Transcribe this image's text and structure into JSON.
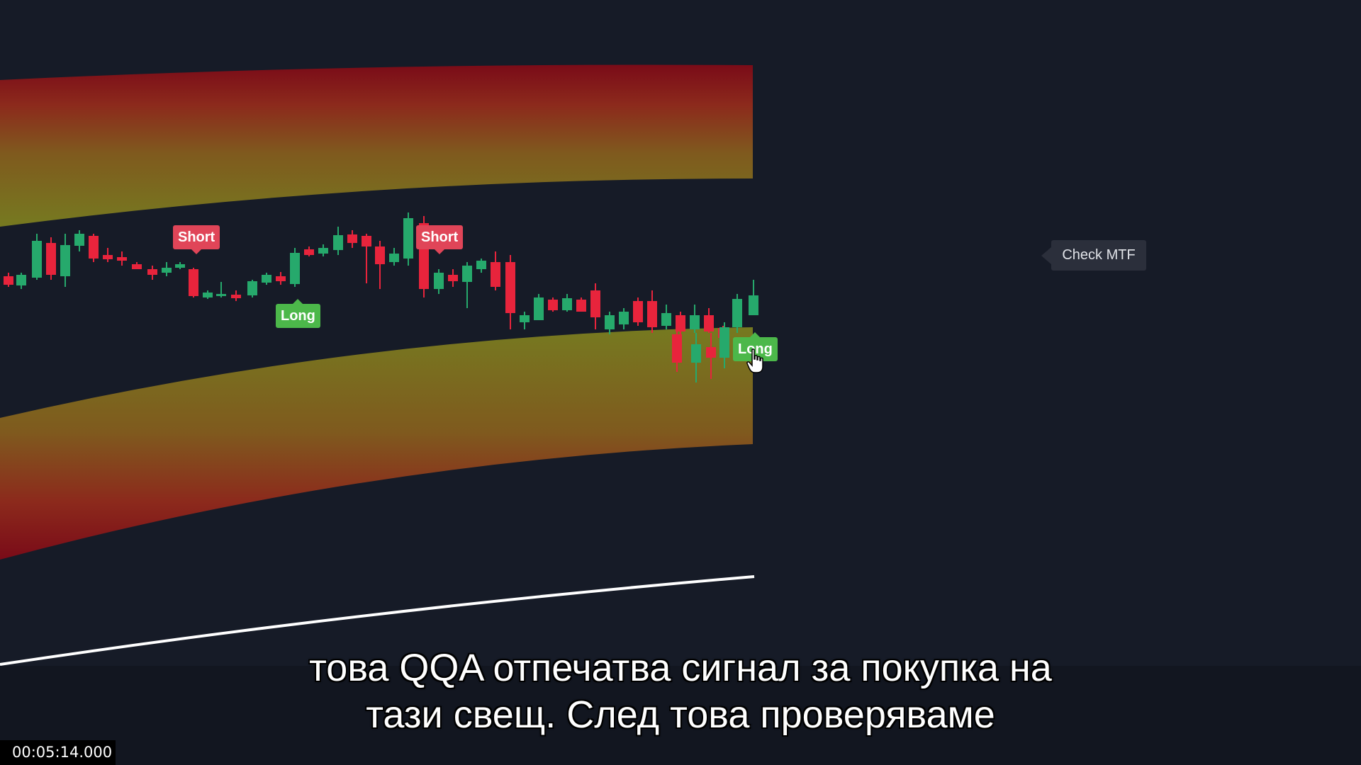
{
  "signals": {
    "short_1": "Short",
    "short_2": "Short",
    "long_1": "Long",
    "long_2": "Long"
  },
  "check_mtf": "Check MTF",
  "subtitle": {
    "line1": "това QQA отпечатва сигнал за покупка на",
    "line2": "тази свещ. След това проверяваме"
  },
  "timestamp": "00:05:14.000",
  "colors": {
    "background": "#161b27",
    "bullish": "#26a96c",
    "bearish": "#e8243c",
    "short_label": "#e04558",
    "long_label": "#4cb84a",
    "band_inner": "#7a7a1e",
    "band_outer": "#7a0b18"
  },
  "icons": {
    "cursor": "hand-pointer-icon",
    "tooltip_arrow": "left-pointer-icon"
  }
}
